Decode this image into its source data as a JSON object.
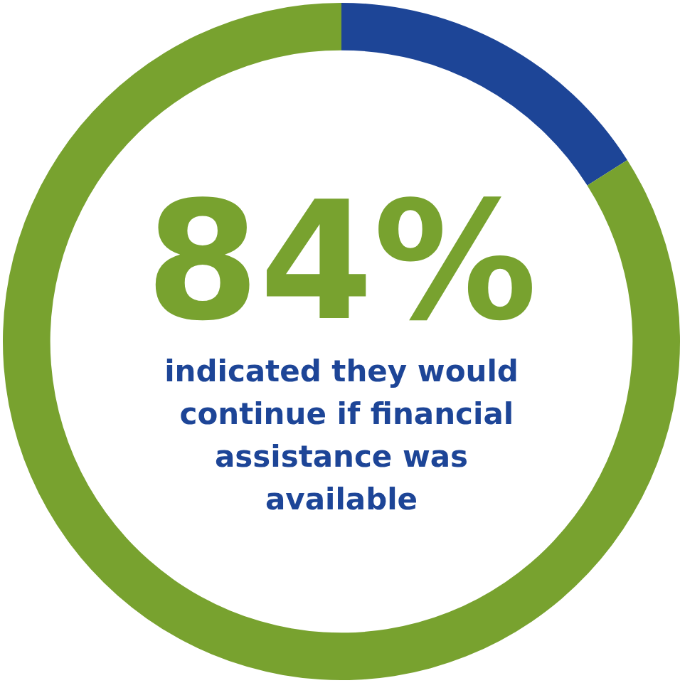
{
  "chart_data": {
    "type": "donut",
    "title": "84%",
    "subtitle": "indicated they would continue if financial assistance was available",
    "categories": [
      null,
      null
    ],
    "values": [
      16,
      84
    ],
    "colors": [
      "#1d4597",
      "#78a22f"
    ]
  }
}
